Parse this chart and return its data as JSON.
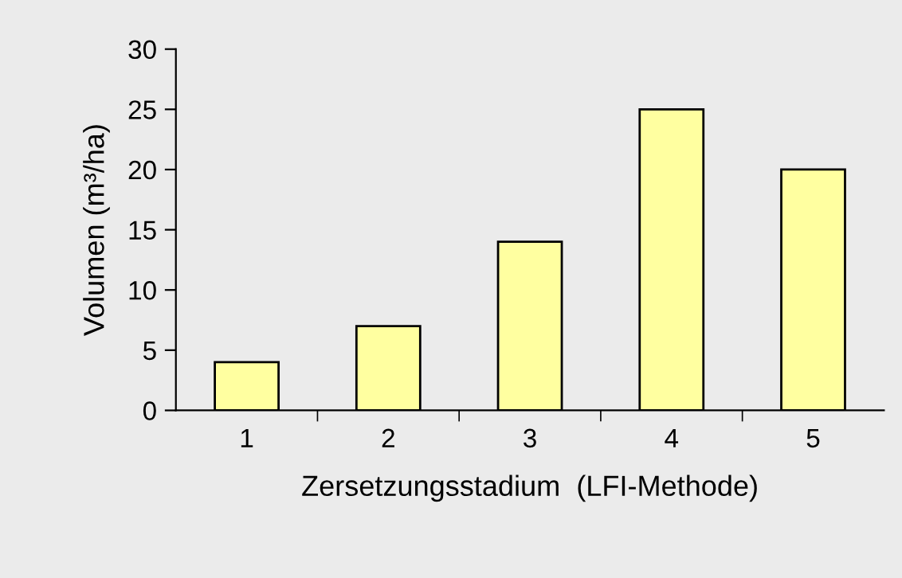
{
  "chart_data": {
    "type": "bar",
    "xlabel": "Zersetzungsstadium  (LFI-Methode)",
    "ylabel": "Volumen (m³/ha)",
    "categories": [
      "1",
      "2",
      "3",
      "4",
      "5"
    ],
    "values": [
      4,
      7,
      14,
      25,
      20
    ],
    "color": "#ffffa0",
    "ylim": [
      0,
      30
    ],
    "yticks": [
      0,
      5,
      10,
      15,
      20,
      25,
      30
    ],
    "grid": false,
    "legend": false
  }
}
